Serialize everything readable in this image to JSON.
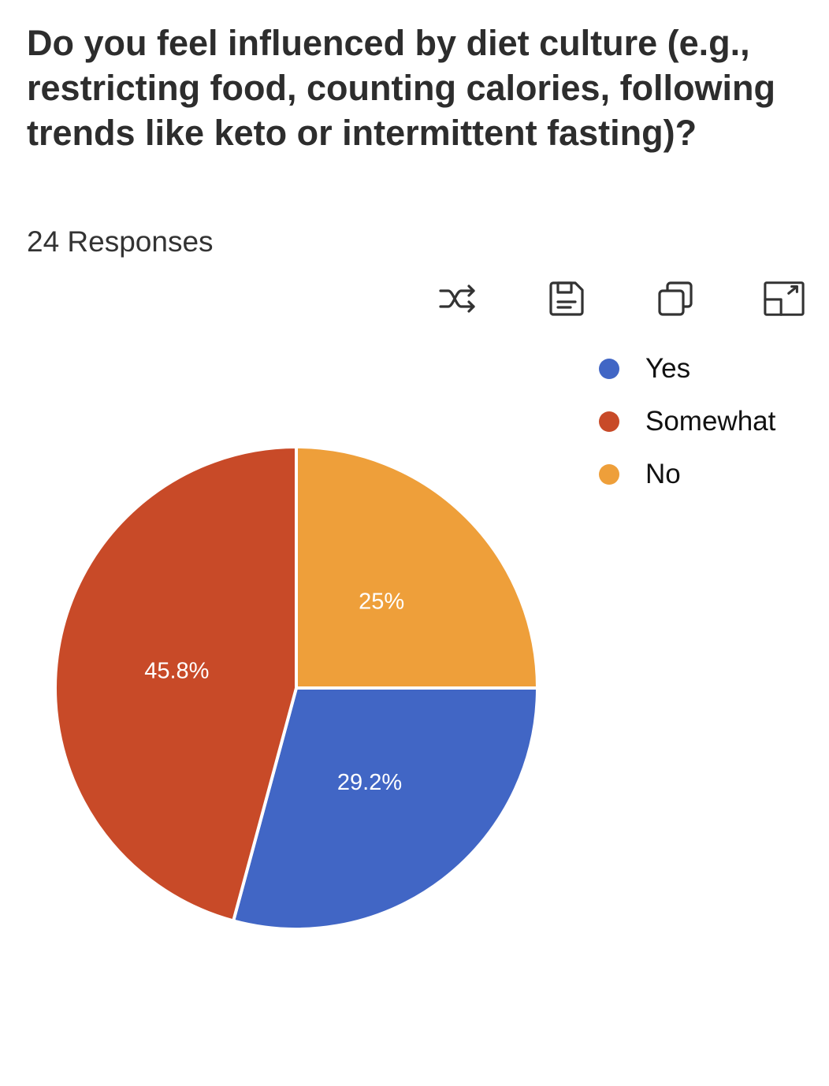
{
  "question": "Do you feel influenced by diet culture (e.g., restricting food, counting calories, following trends like keto or intermittent fasting)?",
  "responses": "24 Responses",
  "toolbar": {
    "icons": [
      "shuffle-icon",
      "save-icon",
      "copy-icon",
      "expand-icon"
    ]
  },
  "chart_data": {
    "type": "pie",
    "categories": [
      "Yes",
      "Somewhat",
      "No"
    ],
    "values": [
      29.2,
      45.8,
      25
    ],
    "labels": [
      "29.2%",
      "45.8%",
      "25%"
    ],
    "colors": [
      "#4166c5",
      "#c84a28",
      "#ee9f3a"
    ],
    "legend_position": "top-right"
  }
}
